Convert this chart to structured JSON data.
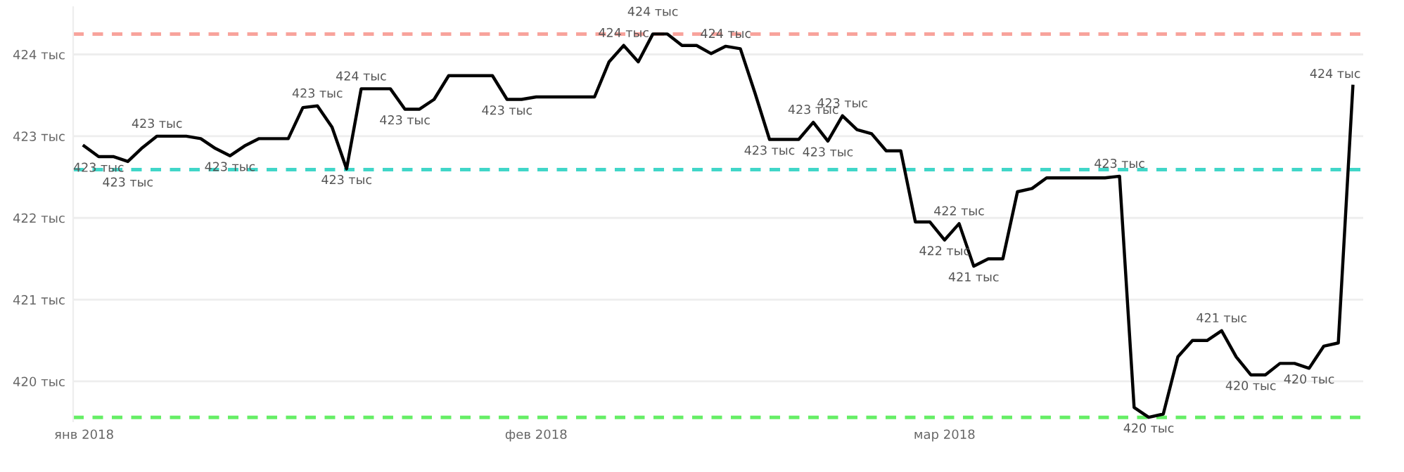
{
  "chart_data": {
    "type": "line",
    "x": [
      "2018-01-01",
      "2018-01-02",
      "2018-01-03",
      "2018-01-04",
      "2018-01-05",
      "2018-01-06",
      "2018-01-07",
      "2018-01-08",
      "2018-01-09",
      "2018-01-10",
      "2018-01-11",
      "2018-01-12",
      "2018-01-13",
      "2018-01-14",
      "2018-01-15",
      "2018-01-16",
      "2018-01-17",
      "2018-01-18",
      "2018-01-19",
      "2018-01-20",
      "2018-01-21",
      "2018-01-22",
      "2018-01-23",
      "2018-01-24",
      "2018-01-25",
      "2018-01-26",
      "2018-01-27",
      "2018-01-28",
      "2018-01-29",
      "2018-01-30",
      "2018-01-31",
      "2018-02-01",
      "2018-02-02",
      "2018-02-03",
      "2018-02-04",
      "2018-02-05",
      "2018-02-06",
      "2018-02-07",
      "2018-02-08",
      "2018-02-09",
      "2018-02-10",
      "2018-02-11",
      "2018-02-12",
      "2018-02-13",
      "2018-02-14",
      "2018-02-15",
      "2018-02-16",
      "2018-02-17",
      "2018-02-18",
      "2018-02-19",
      "2018-02-20",
      "2018-02-21",
      "2018-02-22",
      "2018-02-23",
      "2018-02-24",
      "2018-02-25",
      "2018-02-26",
      "2018-02-27",
      "2018-02-28",
      "2018-03-01",
      "2018-03-02",
      "2018-03-03",
      "2018-03-04",
      "2018-03-05",
      "2018-03-06",
      "2018-03-07",
      "2018-03-08",
      "2018-03-09",
      "2018-03-10",
      "2018-03-11",
      "2018-03-12",
      "2018-03-13",
      "2018-03-14",
      "2018-03-15",
      "2018-03-16",
      "2018-03-17",
      "2018-03-18",
      "2018-03-19",
      "2018-03-20",
      "2018-03-21",
      "2018-03-22",
      "2018-03-23",
      "2018-03-24",
      "2018-03-25",
      "2018-03-26",
      "2018-03-27",
      "2018-03-28",
      "2018-03-29"
    ],
    "series": [
      {
        "color": "#000000",
        "values": [
          422.88,
          422.75,
          422.75,
          422.69,
          422.86,
          423.0,
          423.0,
          423.0,
          422.97,
          422.85,
          422.76,
          422.88,
          422.97,
          422.97,
          422.97,
          423.35,
          423.37,
          423.11,
          422.6,
          423.58,
          423.58,
          423.58,
          423.33,
          423.33,
          423.45,
          423.74,
          423.74,
          423.74,
          423.74,
          423.45,
          423.45,
          423.48,
          423.48,
          423.48,
          423.48,
          423.48,
          423.91,
          424.11,
          423.91,
          424.25,
          424.25,
          424.11,
          424.11,
          424.01,
          424.1,
          424.07,
          423.53,
          422.96,
          422.96,
          422.96,
          423.17,
          422.94,
          423.25,
          423.08,
          423.03,
          422.82,
          422.82,
          421.95,
          421.95,
          421.73,
          421.93,
          421.41,
          421.5,
          421.5,
          422.32,
          422.36,
          422.49,
          422.49,
          422.49,
          422.49,
          422.49,
          422.51,
          419.68,
          419.56,
          419.6,
          420.3,
          420.5,
          420.5,
          420.62,
          420.3,
          420.08,
          420.08,
          420.22,
          420.22,
          420.16,
          420.43,
          420.47,
          423.61
        ],
        "value_labels": [
          null,
          "423 тыс",
          null,
          "423 тыс",
          null,
          "423 тыс",
          null,
          null,
          null,
          null,
          "423 тыс",
          null,
          null,
          null,
          null,
          null,
          "423 тыс",
          null,
          "423 тыс",
          "424 тыс",
          null,
          null,
          "423 тыс",
          null,
          null,
          null,
          null,
          null,
          null,
          "423 тыс",
          null,
          null,
          null,
          null,
          null,
          null,
          null,
          "424 тыс",
          null,
          "424 тыс",
          null,
          null,
          null,
          null,
          "424 тыс",
          null,
          null,
          "423 тыс",
          null,
          null,
          "423 тыс",
          "423 тыс",
          "423 тыс",
          null,
          null,
          null,
          null,
          null,
          null,
          "422 тыс",
          "422 тыс",
          "421 тыс",
          null,
          null,
          null,
          null,
          null,
          null,
          null,
          null,
          null,
          "423 тыс",
          null,
          "420 тыс",
          null,
          null,
          null,
          null,
          "421 тыс",
          null,
          "420 тыс",
          null,
          null,
          null,
          "420 тыс",
          null,
          null,
          "424 тыс"
        ]
      }
    ],
    "xlim": [
      "2017-12-31T06:00",
      "2018-03-29T17:00"
    ],
    "xticks": [
      {
        "value": "2018-01-01",
        "label": "янв 2018"
      },
      {
        "value": "2018-02-01",
        "label": "фев 2018"
      },
      {
        "value": "2018-03-01",
        "label": "мар 2018"
      }
    ],
    "ylim": [
      419.51,
      424.58
    ],
    "yticks": [
      {
        "value": 420,
        "label": "420 тыс"
      },
      {
        "value": 421,
        "label": "421 тыс"
      },
      {
        "value": 422,
        "label": "422 тыс"
      },
      {
        "value": 423,
        "label": "423 тыс"
      },
      {
        "value": 424,
        "label": "424 тыс"
      }
    ],
    "grid": "y",
    "ref_lines": [
      {
        "axis": "y",
        "value": 424.25,
        "color": "#f8a39c",
        "line_style": "dashed"
      },
      {
        "axis": "y",
        "value": 422.59,
        "color": "#40d6c8",
        "line_style": "dashed"
      },
      {
        "axis": "y",
        "value": 419.56,
        "color": "#66ee66",
        "line_style": "dashed"
      }
    ]
  }
}
